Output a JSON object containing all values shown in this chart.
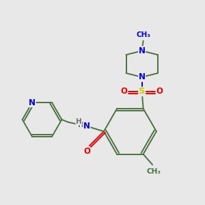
{
  "bg_color": "#e8e8e8",
  "bond_color": "#4a7040",
  "bond_width": 1.4,
  "atom_colors": {
    "N": "#0000ee",
    "O": "#ee0000",
    "S": "#cccc00",
    "C": "#4a7040",
    "H": "#707070"
  },
  "fs": 8.5,
  "fs_small": 7.5
}
